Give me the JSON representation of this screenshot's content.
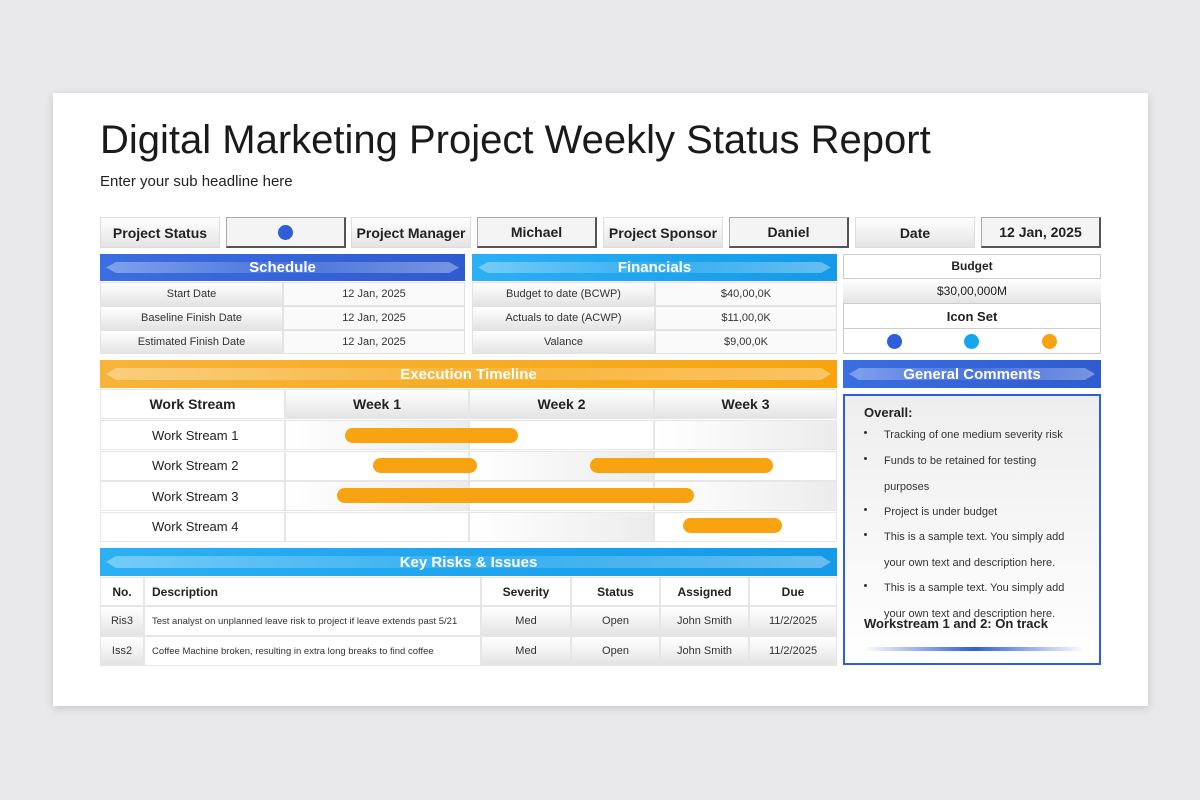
{
  "header": {
    "title": "Digital Marketing Project Weekly Status Report",
    "subtitle": "Enter your sub headline here"
  },
  "status_bar": {
    "items": [
      {
        "label": "Project Status"
      },
      {
        "label": "Project Manager",
        "value": "Michael"
      },
      {
        "label": "Project Sponsor",
        "value": "Daniel"
      },
      {
        "label": "Date",
        "value": "12 Jan, 2025"
      }
    ]
  },
  "schedule": {
    "title": "Schedule",
    "rows": [
      [
        "Start Date",
        "12 Jan, 2025"
      ],
      [
        "Baseline Finish Date",
        "12 Jan, 2025"
      ],
      [
        "Estimated Finish Date",
        "12 Jan, 2025"
      ]
    ]
  },
  "financials": {
    "title": "Financials",
    "rows": [
      [
        "Budget to date (BCWP)",
        "$40,00,0K"
      ],
      [
        "Actuals to date (ACWP)",
        "$11,00,0K"
      ],
      [
        "Valance",
        "$9,00,0K"
      ]
    ]
  },
  "budget": {
    "title": "Budget",
    "value": "$30,00,000M",
    "icon_set_title": "Icon Set"
  },
  "timeline": {
    "title": "Execution Timeline",
    "columns": [
      "Work Stream",
      "Week 1",
      "Week 2",
      "Week 3"
    ],
    "rows": [
      "Work Stream 1",
      "Work Stream 2",
      "Work Stream 3",
      "Work Stream 4"
    ]
  },
  "risks": {
    "title": "Key Risks & Issues",
    "columns": [
      "No.",
      "Description",
      "Severity",
      "Status",
      "Assigned",
      "Due"
    ],
    "rows": [
      [
        "Ris3",
        "Test analyst on unplanned leave risk to project if leave extends past 5/21",
        "Med",
        "Open",
        "John Smith",
        "11/2/2025"
      ],
      [
        "Iss2",
        "Coffee Machine broken, resulting in extra long breaks to find coffee",
        "Med",
        "Open",
        "John Smith",
        "11/2/2025"
      ]
    ]
  },
  "comments": {
    "title": "General Comments",
    "heading": "Overall:",
    "bullets": [
      "Tracking of one medium severity risk",
      "Funds to be retained for testing purposes",
      "Project is under budget",
      "This is a sample text. You simply add your own text and description here.",
      "This is a sample text. You simply add your own text and description here."
    ],
    "footer": "Workstream 1 and 2: On track"
  }
}
